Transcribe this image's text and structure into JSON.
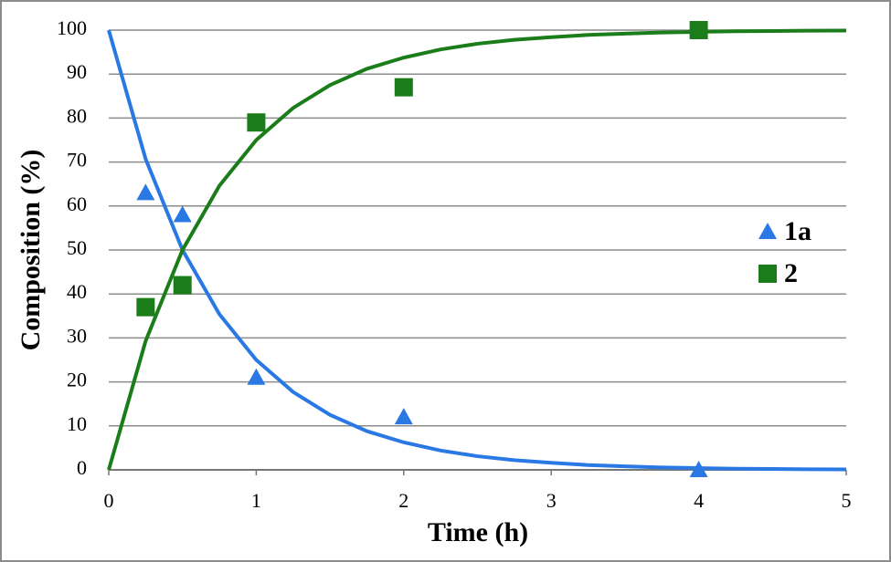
{
  "chart_data": {
    "type": "scatter",
    "x_label": "Time (h)",
    "y_label": "Composition (%)",
    "xlim": [
      0,
      5
    ],
    "xticks": [
      0,
      1,
      2,
      3,
      4,
      5
    ],
    "ylim": [
      0,
      100
    ],
    "yticks": [
      0,
      10,
      20,
      30,
      40,
      50,
      60,
      70,
      80,
      90,
      100
    ],
    "grid": true,
    "legend": "right",
    "series": [
      {
        "name": "1a",
        "color": "#2a78e4",
        "marker": "triangle",
        "x": [
          0.25,
          0.5,
          1,
          2,
          4
        ],
        "values": [
          63,
          58,
          21,
          12,
          0
        ]
      },
      {
        "name": "2",
        "color": "#1a7d1a",
        "marker": "square",
        "x": [
          0.25,
          0.5,
          1,
          2,
          4
        ],
        "values": [
          37,
          42,
          79,
          87,
          100
        ]
      }
    ],
    "curves": [
      {
        "color": "#2a78e4",
        "x": [
          0,
          0.25,
          0.5,
          0.75,
          1,
          1.25,
          1.5,
          1.75,
          2,
          2.25,
          2.5,
          2.75,
          3,
          3.25,
          3.5,
          3.75,
          4,
          4.25,
          4.5,
          4.75,
          5
        ],
        "values": [
          100,
          70.7,
          50,
          35.4,
          25,
          17.7,
          12.5,
          8.8,
          6.25,
          4.4,
          3.1,
          2.2,
          1.6,
          1.1,
          0.8,
          0.55,
          0.4,
          0.27,
          0.2,
          0.14,
          0.1
        ]
      },
      {
        "color": "#1a7d1a",
        "x": [
          0,
          0.25,
          0.5,
          0.75,
          1,
          1.25,
          1.5,
          1.75,
          2,
          2.25,
          2.5,
          2.75,
          3,
          3.25,
          3.5,
          3.75,
          4,
          4.25,
          4.5,
          4.75,
          5
        ],
        "values": [
          0,
          29.3,
          50,
          64.6,
          75,
          82.3,
          87.5,
          91.2,
          93.75,
          95.6,
          96.9,
          97.8,
          98.4,
          98.9,
          99.2,
          99.45,
          99.6,
          99.73,
          99.8,
          99.86,
          99.9
        ]
      }
    ]
  }
}
